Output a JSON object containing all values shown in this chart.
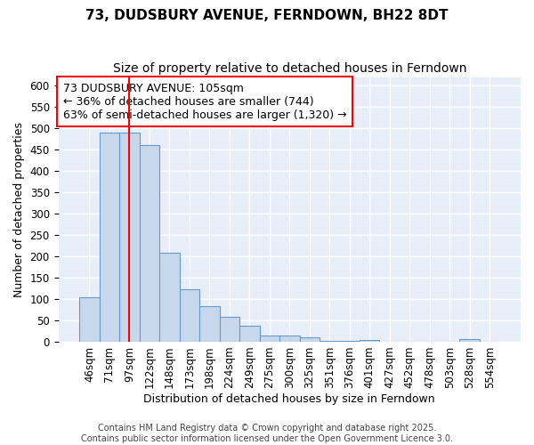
{
  "title": "73, DUDSBURY AVENUE, FERNDOWN, BH22 8DT",
  "subtitle": "Size of property relative to detached houses in Ferndown",
  "xlabel": "Distribution of detached houses by size in Ferndown",
  "ylabel": "Number of detached properties",
  "categories": [
    "46sqm",
    "71sqm",
    "97sqm",
    "122sqm",
    "148sqm",
    "173sqm",
    "198sqm",
    "224sqm",
    "249sqm",
    "275sqm",
    "300sqm",
    "325sqm",
    "351sqm",
    "376sqm",
    "401sqm",
    "427sqm",
    "452sqm",
    "478sqm",
    "503sqm",
    "528sqm",
    "554sqm"
  ],
  "values": [
    105,
    490,
    490,
    460,
    208,
    123,
    83,
    58,
    38,
    14,
    14,
    10,
    3,
    2,
    5,
    0,
    0,
    0,
    0,
    6,
    0
  ],
  "bar_color": "#c8d8ec",
  "bar_edgecolor": "#6699cc",
  "vline_x_index": 2,
  "vline_color": "red",
  "annotation_text": "73 DUDSBURY AVENUE: 105sqm\n← 36% of detached houses are smaller (744)\n63% of semi-detached houses are larger (1,320) →",
  "annotation_box_edgecolor": "red",
  "ylim": [
    0,
    620
  ],
  "yticks": [
    0,
    50,
    100,
    150,
    200,
    250,
    300,
    350,
    400,
    450,
    500,
    550,
    600
  ],
  "axes_background_color": "#e8eef8",
  "figure_background_color": "#ffffff",
  "grid_color": "#ffffff",
  "footer_text": "Contains HM Land Registry data © Crown copyright and database right 2025.\nContains public sector information licensed under the Open Government Licence 3.0.",
  "title_fontsize": 11,
  "subtitle_fontsize": 10,
  "label_fontsize": 9,
  "tick_fontsize": 8.5,
  "annotation_fontsize": 9
}
